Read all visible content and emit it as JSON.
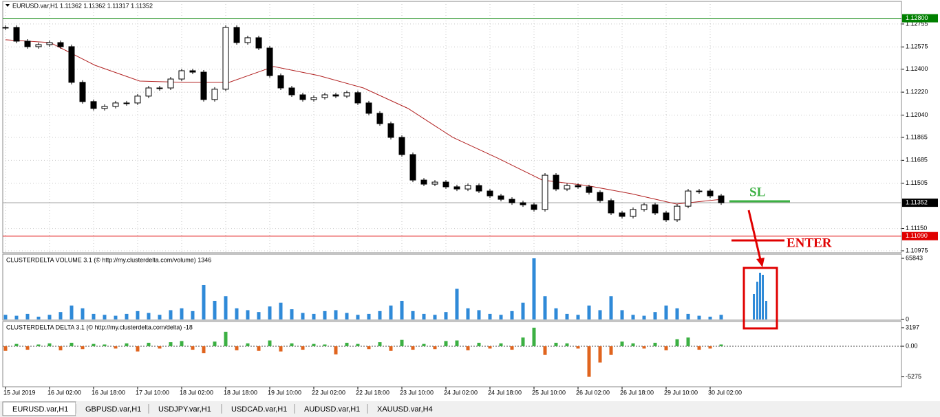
{
  "tabs": [
    "EURUSD.var,H1",
    "GBPUSD.var,H1",
    "USDJPY.var,H1",
    "USDCAD.var,H1",
    "AUDUSD.var,H1",
    "XAUUSD.var,H4"
  ],
  "annotations": {
    "sl": "SL",
    "enter": "ENTER"
  },
  "chart_data": [
    {
      "type": "candlestick",
      "title": "EURUSD.var,H1  1.11362 1.11362 1.11317 1.11352",
      "categories": [
        "15 Jul 2019",
        null,
        null,
        null,
        "16 Jul 02:00",
        null,
        null,
        null,
        "16 Jul 18:00",
        null,
        null,
        null,
        "17 Jul 10:00",
        null,
        null,
        null,
        "18 Jul 02:00",
        null,
        null,
        null,
        "18 Jul 18:00",
        null,
        null,
        null,
        "19 Jul 10:00",
        null,
        null,
        null,
        "22 Jul 02:00",
        null,
        null,
        null,
        "22 Jul 18:00",
        null,
        null,
        null,
        "23 Jul 10:00",
        null,
        null,
        null,
        "24 Jul 02:00",
        null,
        null,
        null,
        "24 Jul 18:00",
        null,
        null,
        null,
        "25 Jul 10:00",
        null,
        null,
        null,
        "26 Jul 02:00",
        null,
        null,
        null,
        "26 Jul 18:00",
        null,
        null,
        null,
        "29 Jul 10:00",
        null,
        null,
        null,
        "30 Jul 02:00",
        null
      ],
      "values": [
        1.12728,
        1.1262,
        1.12577,
        1.12593,
        1.12609,
        1.12577,
        1.12297,
        1.12146,
        1.12092,
        1.12108,
        1.12135,
        1.12135,
        1.12189,
        1.12253,
        1.12253,
        1.12323,
        1.12388,
        1.12377,
        1.12162,
        1.12243,
        1.12728,
        1.12609,
        1.12647,
        1.12566,
        1.1235,
        1.12253,
        1.12199,
        1.12162,
        1.12178,
        1.12199,
        1.12189,
        1.12216,
        1.12135,
        1.12054,
        1.11973,
        1.11865,
        1.1173,
        1.1153,
        1.11498,
        1.11514,
        1.11477,
        1.1146,
        1.11487,
        1.11444,
        1.11406,
        1.11379,
        1.11352,
        1.11336,
        1.11299,
        1.11568,
        1.1146,
        1.11487,
        1.11477,
        1.11433,
        1.11369,
        1.11272,
        1.11245,
        1.11299,
        1.11336,
        1.11272,
        1.11218,
        1.11325,
        1.11444,
        1.11444,
        1.11406,
        1.11352
      ],
      "ma_values": [
        1.12631,
        1.12609,
        1.12431,
        1.12307,
        1.12297,
        1.12297,
        1.12421,
        1.1235,
        1.12253,
        1.12092,
        1.11865,
        1.11703,
        1.1153,
        1.11487,
        1.11422,
        1.11342,
        1.11379
      ],
      "ma_color": "#b22222",
      "ylim": [
        1.10959,
        1.12857
      ],
      "yticks": [
        1.12755,
        1.12575,
        {
          "value": 1.124,
          "label": "1.12400"
        },
        {
          "value": 1.1222,
          "label": "1.12220"
        },
        {
          "value": 1.1204,
          "label": "1.12040"
        },
        1.11865,
        1.11685,
        1.11505,
        {
          "value": 1.1115,
          "label": "1.11150"
        },
        1.10975
      ],
      "levels": [
        {
          "value": 1.128,
          "label": "1.12800",
          "color": "#008000"
        },
        {
          "value": 1.1109,
          "label": "1.11090",
          "color": "#e00000"
        }
      ],
      "current": {
        "value": 1.11352,
        "label": "1.11352"
      },
      "grid": true
    },
    {
      "type": "bar",
      "title": "CLUSTERDELTA VOLUME 3.1 (© http://my.clusterdelta.com/volume) 1346",
      "values": [
        5000,
        4000,
        6000,
        3000,
        5000,
        8000,
        15000,
        12000,
        6000,
        5000,
        4000,
        6000,
        9000,
        7000,
        5000,
        10000,
        12000,
        9000,
        37000,
        20000,
        25000,
        12000,
        10000,
        8000,
        14000,
        18000,
        11000,
        7000,
        6000,
        9000,
        10000,
        7000,
        5000,
        6000,
        9000,
        15000,
        20000,
        9000,
        6000,
        5000,
        8000,
        33000,
        12000,
        10000,
        6000,
        5000,
        9000,
        18000,
        65843,
        25000,
        12000,
        6000,
        5000,
        15000,
        10000,
        25000,
        10000,
        5000,
        4000,
        8000,
        15000,
        12000,
        6000,
        4000,
        3000,
        5000
      ],
      "color": "#2f8ad8",
      "ylim": [
        0,
        70280
      ],
      "yticks": [
        65843,
        0
      ]
    },
    {
      "type": "bar",
      "title": "CLUSTERDELTA DELTA 3.1 (© http://my.clusterdelta.com/delta) -18",
      "values": [
        -800,
        400,
        -600,
        300,
        500,
        -700,
        600,
        -500,
        400,
        300,
        -400,
        500,
        -900,
        600,
        -400,
        700,
        900,
        -600,
        -1200,
        800,
        2500,
        -700,
        500,
        -800,
        1000,
        -900,
        500,
        -600,
        400,
        300,
        -1400,
        600,
        400,
        -500,
        700,
        -800,
        1100,
        -600,
        400,
        -500,
        900,
        1000,
        -700,
        600,
        -400,
        500,
        -600,
        1500,
        3197,
        -1500,
        600,
        500,
        -400,
        -5275,
        -2800,
        -1500,
        800,
        500,
        -400,
        600,
        -700,
        1200,
        1500,
        -600,
        -400,
        300
      ],
      "color_positive": "#3cb043",
      "color_negative": "#e0641e",
      "ylim": [
        -6868,
        4263
      ],
      "yticks": [
        3197,
        {
          "value": 0,
          "label": "0.00"
        },
        -5275
      ]
    }
  ]
}
